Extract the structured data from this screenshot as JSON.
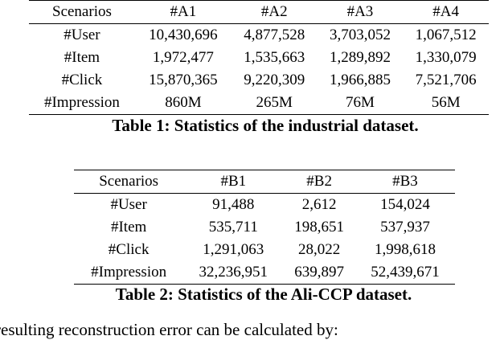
{
  "table1": {
    "headers": [
      "Scenarios",
      "#A1",
      "#A2",
      "#A3",
      "#A4"
    ],
    "rows": [
      [
        "#User",
        "10,430,696",
        "4,877,528",
        "3,703,052",
        "1,067,512"
      ],
      [
        "#Item",
        "1,972,477",
        "1,535,663",
        "1,289,892",
        "1,330,079"
      ],
      [
        "#Click",
        "15,870,365",
        "9,220,309",
        "1,966,885",
        "7,521,706"
      ],
      [
        "#Impression",
        "860M",
        "265M",
        "76M",
        "56M"
      ]
    ],
    "caption": "Table 1: Statistics of the industrial dataset."
  },
  "table2": {
    "headers": [
      "Scenarios",
      "#B1",
      "#B2",
      "#B3"
    ],
    "rows": [
      [
        "#User",
        "91,488",
        "2,612",
        "154,024"
      ],
      [
        "#Item",
        "535,711",
        "198,651",
        "537,937"
      ],
      [
        "#Click",
        "1,291,063",
        "28,022",
        "1,998,618"
      ],
      [
        "#Impression",
        "32,236,951",
        "639,897",
        "52,439,671"
      ]
    ],
    "caption": "Table 2: Statistics of the Ali-CCP dataset."
  },
  "trailing_text": "resulting reconstruction error can be calculated by:"
}
